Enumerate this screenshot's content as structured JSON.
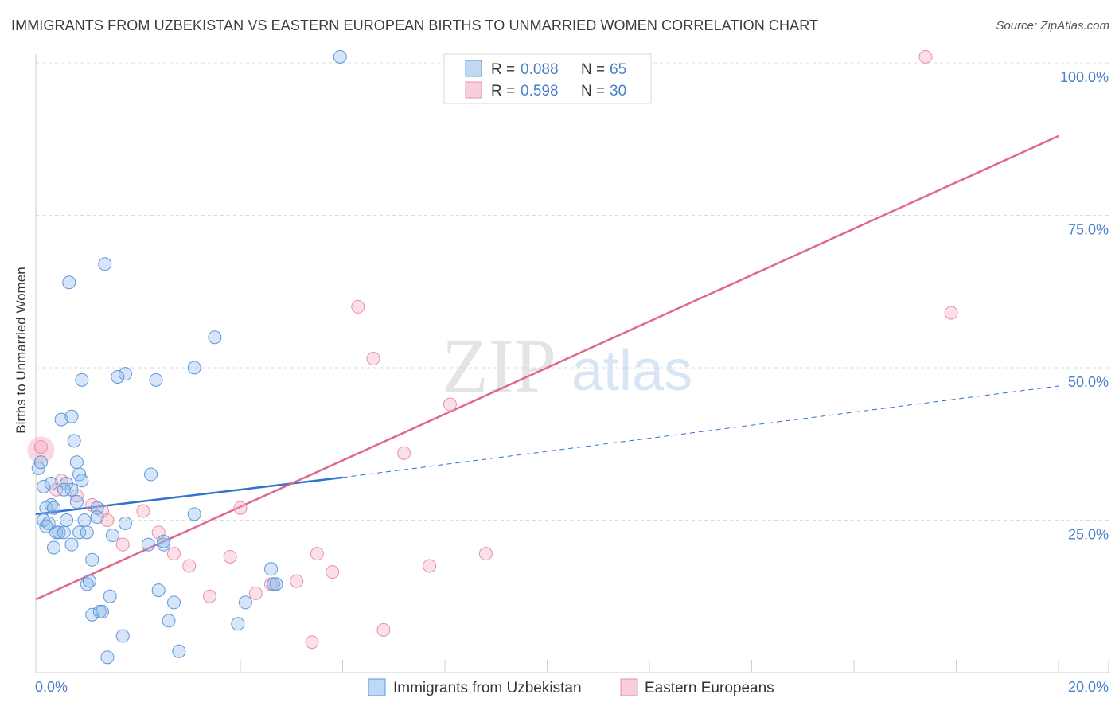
{
  "header": {
    "title": "IMMIGRANTS FROM UZBEKISTAN VS EASTERN EUROPEAN BIRTHS TO UNMARRIED WOMEN CORRELATION CHART",
    "source": "Source: ZipAtlas.com"
  },
  "watermark": {
    "zip": "ZIP",
    "atlas": "atlas"
  },
  "colors": {
    "blue": "#8ab8ea",
    "blue_line": "#2f72d0",
    "pink": "#f4a6be",
    "pink_line": "#e0688f",
    "tick_label": "#4a7fc9"
  },
  "chart_data": {
    "type": "scatter",
    "title": "IMMIGRANTS FROM UZBEKISTAN VS EASTERN EUROPEAN BIRTHS TO UNMARRIED WOMEN CORRELATION CHART",
    "xlabel": "",
    "ylabel": "Births to Unmarried Women",
    "xlim": [
      0,
      20
    ],
    "ylim": [
      0,
      100
    ],
    "x_tick_labels": [
      "0.0%",
      "20.0%"
    ],
    "y_ticks": [
      25,
      50,
      75,
      100
    ],
    "y_tick_labels": [
      "25.0%",
      "50.0%",
      "75.0%",
      "100.0%"
    ],
    "grid": true,
    "legend_position": "top-center",
    "legend": [
      {
        "r_label": "R =",
        "r_value": "0.088",
        "n_label": "N =",
        "n_value": "65"
      },
      {
        "r_label": "R =",
        "r_value": "0.598",
        "n_label": "N =",
        "n_value": "30"
      }
    ],
    "bottom_legend": [
      "Immigrants from Uzbekistan",
      "Eastern Europeans"
    ],
    "series": [
      {
        "name": "Immigrants from Uzbekistan",
        "color": "#8ab8ea",
        "trend": {
          "x0": 0,
          "y0": 26.0,
          "x1": 6.0,
          "y1": 32.0,
          "dashed_to_x": 20,
          "dashed_to_y": 47.0
        },
        "points": [
          [
            0.05,
            33.5
          ],
          [
            0.1,
            34.5
          ],
          [
            0.15,
            30.5
          ],
          [
            0.15,
            25.0
          ],
          [
            0.2,
            24.0
          ],
          [
            0.2,
            27.0
          ],
          [
            0.25,
            24.5
          ],
          [
            0.3,
            27.5
          ],
          [
            0.3,
            31.0
          ],
          [
            0.35,
            27.0
          ],
          [
            0.35,
            20.5
          ],
          [
            0.4,
            23.0
          ],
          [
            0.45,
            23.0
          ],
          [
            0.5,
            41.5
          ],
          [
            0.55,
            23.0
          ],
          [
            0.6,
            31.0
          ],
          [
            0.6,
            25.0
          ],
          [
            0.7,
            42.0
          ],
          [
            0.7,
            21.0
          ],
          [
            0.7,
            30.0
          ],
          [
            0.75,
            38.0
          ],
          [
            0.8,
            34.5
          ],
          [
            0.8,
            28.0
          ],
          [
            0.85,
            32.5
          ],
          [
            0.85,
            23.0
          ],
          [
            0.9,
            48.0
          ],
          [
            0.9,
            31.5
          ],
          [
            0.95,
            25.0
          ],
          [
            1.0,
            14.5
          ],
          [
            1.0,
            23.0
          ],
          [
            1.05,
            15.0
          ],
          [
            1.1,
            18.5
          ],
          [
            1.1,
            9.5
          ],
          [
            1.2,
            27.0
          ],
          [
            1.2,
            25.5
          ],
          [
            1.25,
            10.0
          ],
          [
            1.3,
            10.0
          ],
          [
            1.35,
            67.0
          ],
          [
            1.4,
            2.5
          ],
          [
            1.45,
            12.5
          ],
          [
            1.5,
            22.5
          ],
          [
            0.65,
            64.0
          ],
          [
            1.7,
            6.0
          ],
          [
            1.75,
            24.5
          ],
          [
            1.75,
            49.0
          ],
          [
            2.2,
            21.0
          ],
          [
            2.25,
            32.5
          ],
          [
            2.35,
            48.0
          ],
          [
            2.4,
            13.5
          ],
          [
            2.5,
            21.0
          ],
          [
            2.5,
            21.5
          ],
          [
            2.6,
            8.5
          ],
          [
            2.7,
            11.5
          ],
          [
            2.8,
            3.5
          ],
          [
            3.1,
            50.0
          ],
          [
            3.1,
            26.0
          ],
          [
            3.5,
            55.0
          ],
          [
            3.95,
            8.0
          ],
          [
            4.1,
            11.5
          ],
          [
            4.6,
            17.0
          ],
          [
            4.65,
            14.5
          ],
          [
            4.7,
            14.5
          ],
          [
            5.95,
            101.0
          ],
          [
            1.6,
            48.5
          ],
          [
            0.55,
            30.0
          ]
        ]
      },
      {
        "name": "Eastern Europeans",
        "color": "#f4a6be",
        "trend": {
          "x0": 0,
          "y0": 12.0,
          "x1": 20,
          "y1": 88.0
        },
        "points": [
          [
            0.1,
            37.0
          ],
          [
            0.4,
            30.0
          ],
          [
            0.5,
            31.5
          ],
          [
            0.8,
            29.0
          ],
          [
            1.1,
            27.5
          ],
          [
            1.3,
            26.5
          ],
          [
            1.4,
            25.0
          ],
          [
            1.7,
            21.0
          ],
          [
            2.1,
            26.5
          ],
          [
            2.4,
            23.0
          ],
          [
            2.7,
            19.5
          ],
          [
            3.0,
            17.5
          ],
          [
            3.4,
            12.5
          ],
          [
            3.8,
            19.0
          ],
          [
            4.0,
            27.0
          ],
          [
            4.3,
            13.0
          ],
          [
            4.6,
            14.5
          ],
          [
            5.1,
            15.0
          ],
          [
            5.4,
            5.0
          ],
          [
            5.5,
            19.5
          ],
          [
            5.8,
            16.5
          ],
          [
            6.3,
            60.0
          ],
          [
            6.6,
            51.5
          ],
          [
            6.8,
            7.0
          ],
          [
            7.2,
            36.0
          ],
          [
            7.7,
            17.5
          ],
          [
            8.1,
            44.0
          ],
          [
            8.8,
            19.5
          ],
          [
            17.4,
            101.0
          ],
          [
            17.9,
            59.0
          ]
        ]
      }
    ]
  }
}
